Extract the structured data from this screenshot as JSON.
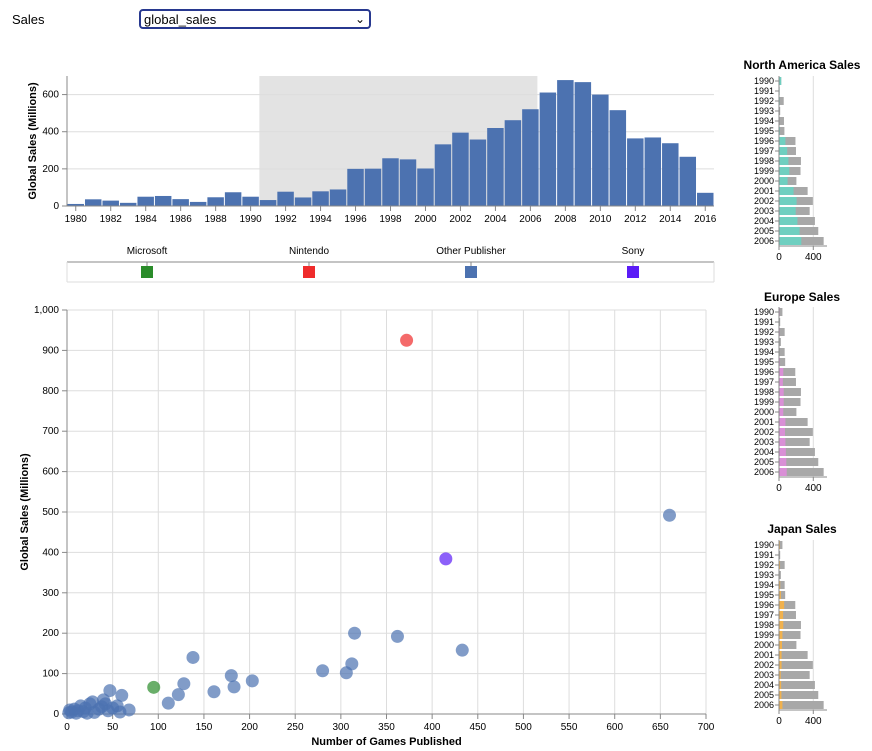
{
  "control": {
    "label": "Sales",
    "selected": "global_sales"
  },
  "chart_data": [
    {
      "type": "bar",
      "ylabel": "Global Sales (Millions)",
      "xlabel": "",
      "ylim": [
        0,
        700
      ],
      "yticks": [
        0,
        200,
        400,
        600
      ],
      "xticks": [
        "1980",
        "1982",
        "1984",
        "1986",
        "1988",
        "1990",
        "1992",
        "1994",
        "1996",
        "1998",
        "2000",
        "2002",
        "2004",
        "2006",
        "2008",
        "2010",
        "2012",
        "2014",
        "2016"
      ],
      "brush": [
        1990.5,
        2006.4
      ],
      "bar_color": "#4c72b0",
      "years": [
        1980,
        1981,
        1982,
        1983,
        1984,
        1985,
        1986,
        1987,
        1988,
        1989,
        1990,
        1991,
        1992,
        1993,
        1994,
        1995,
        1996,
        1997,
        1998,
        1999,
        2000,
        2001,
        2002,
        2003,
        2004,
        2005,
        2006,
        2007,
        2008,
        2009,
        2010,
        2011,
        2012,
        2013,
        2014,
        2015,
        2016
      ],
      "values": [
        11,
        36,
        29,
        17,
        50,
        54,
        37,
        22,
        47,
        74,
        50,
        32,
        77,
        46,
        79,
        89,
        200,
        201,
        257,
        251,
        202,
        332,
        395,
        358,
        420,
        462,
        521,
        611,
        678,
        667,
        600,
        516,
        364,
        369,
        338,
        265,
        71
      ]
    },
    {
      "type": "legend",
      "entries": [
        {
          "name": "Microsoft",
          "color": "#2a8c2a"
        },
        {
          "name": "Nintendo",
          "color": "#ef2b2b"
        },
        {
          "name": "Other Publisher",
          "color": "#4c72b0"
        },
        {
          "name": "Sony",
          "color": "#5b1cf7"
        }
      ]
    },
    {
      "type": "scatter",
      "xlabel": "Number of Games Published",
      "ylabel": "Global Sales (Millions)",
      "xlim": [
        0,
        700
      ],
      "ylim": [
        0,
        1000
      ],
      "xticks": [
        0,
        50,
        100,
        150,
        200,
        250,
        300,
        350,
        400,
        450,
        500,
        550,
        600,
        650,
        700
      ],
      "yticks": [
        0,
        100,
        200,
        300,
        400,
        500,
        600,
        700,
        800,
        900,
        1000
      ],
      "points": [
        {
          "x": 372,
          "y": 925,
          "color": "#ef2b2b"
        },
        {
          "x": 415,
          "y": 384,
          "color": "#5b1cf7"
        },
        {
          "x": 95,
          "y": 66,
          "color": "#2a8c2a"
        },
        {
          "x": 660,
          "y": 492,
          "color": "#4c72b0"
        },
        {
          "x": 433,
          "y": 158,
          "color": "#4c72b0"
        },
        {
          "x": 362,
          "y": 192,
          "color": "#4c72b0"
        },
        {
          "x": 315,
          "y": 200,
          "color": "#4c72b0"
        },
        {
          "x": 312,
          "y": 124,
          "color": "#4c72b0"
        },
        {
          "x": 306,
          "y": 102,
          "color": "#4c72b0"
        },
        {
          "x": 280,
          "y": 107,
          "color": "#4c72b0"
        },
        {
          "x": 203,
          "y": 82,
          "color": "#4c72b0"
        },
        {
          "x": 183,
          "y": 67,
          "color": "#4c72b0"
        },
        {
          "x": 180,
          "y": 95,
          "color": "#4c72b0"
        },
        {
          "x": 161,
          "y": 55,
          "color": "#4c72b0"
        },
        {
          "x": 138,
          "y": 140,
          "color": "#4c72b0"
        },
        {
          "x": 128,
          "y": 75,
          "color": "#4c72b0"
        },
        {
          "x": 122,
          "y": 48,
          "color": "#4c72b0"
        },
        {
          "x": 111,
          "y": 27,
          "color": "#4c72b0"
        },
        {
          "x": 60,
          "y": 46,
          "color": "#4c72b0"
        },
        {
          "x": 47,
          "y": 58,
          "color": "#4c72b0"
        },
        {
          "x": 68,
          "y": 10,
          "color": "#4c72b0"
        },
        {
          "x": 55,
          "y": 20,
          "color": "#4c72b0"
        },
        {
          "x": 40,
          "y": 35,
          "color": "#4c72b0"
        },
        {
          "x": 35,
          "y": 12,
          "color": "#4c72b0"
        },
        {
          "x": 28,
          "y": 30,
          "color": "#4c72b0"
        },
        {
          "x": 25,
          "y": 25,
          "color": "#4c72b0"
        },
        {
          "x": 20,
          "y": 15,
          "color": "#4c72b0"
        },
        {
          "x": 15,
          "y": 20,
          "color": "#4c72b0"
        },
        {
          "x": 12,
          "y": 8,
          "color": "#4c72b0"
        },
        {
          "x": 8,
          "y": 12,
          "color": "#4c72b0"
        },
        {
          "x": 5,
          "y": 5,
          "color": "#4c72b0"
        },
        {
          "x": 3,
          "y": 10,
          "color": "#4c72b0"
        },
        {
          "x": 2,
          "y": 3,
          "color": "#4c72b0"
        },
        {
          "x": 18,
          "y": 6,
          "color": "#4c72b0"
        },
        {
          "x": 30,
          "y": 4,
          "color": "#4c72b0"
        },
        {
          "x": 45,
          "y": 8,
          "color": "#4c72b0"
        },
        {
          "x": 50,
          "y": 15,
          "color": "#4c72b0"
        },
        {
          "x": 38,
          "y": 18,
          "color": "#4c72b0"
        },
        {
          "x": 22,
          "y": 2,
          "color": "#4c72b0"
        },
        {
          "x": 10,
          "y": 2,
          "color": "#4c72b0"
        },
        {
          "x": 58,
          "y": 5,
          "color": "#4c72b0"
        },
        {
          "x": 42,
          "y": 25,
          "color": "#4c72b0"
        }
      ]
    },
    {
      "type": "bar",
      "orientation": "horizontal",
      "title": "North America Sales",
      "highlight_color": "#6fcfc0",
      "years": [
        "1990",
        "1991",
        "1992",
        "1993",
        "1994",
        "1995",
        "1996",
        "1997",
        "1998",
        "1999",
        "2000",
        "2001",
        "2002",
        "2003",
        "2004",
        "2005",
        "2006"
      ],
      "values": [
        26,
        7,
        55,
        14,
        58,
        63,
        192,
        198,
        256,
        251,
        203,
        334,
        395,
        358,
        419,
        458,
        521
      ],
      "highlight": [
        26,
        7,
        8,
        0,
        0,
        10,
        75,
        95,
        110,
        120,
        100,
        170,
        205,
        195,
        215,
        240,
        260
      ],
      "xticks": [
        0,
        400
      ],
      "xlim": [
        0,
        560
      ]
    },
    {
      "type": "bar",
      "orientation": "horizontal",
      "title": "Europe Sales",
      "highlight_color": "#d98fd6",
      "years": [
        "1990",
        "1991",
        "1992",
        "1993",
        "1994",
        "1995",
        "1996",
        "1997",
        "1998",
        "1999",
        "2000",
        "2001",
        "2002",
        "2003",
        "2004",
        "2005",
        "2006"
      ],
      "values": [
        40,
        14,
        66,
        22,
        66,
        72,
        190,
        198,
        256,
        251,
        203,
        334,
        395,
        358,
        419,
        458,
        521
      ],
      "highlight": [
        8,
        2,
        8,
        2,
        4,
        10,
        50,
        45,
        55,
        55,
        50,
        75,
        70,
        75,
        80,
        85,
        90
      ],
      "xticks": [
        0,
        400
      ],
      "xlim": [
        0,
        560
      ]
    },
    {
      "type": "bar",
      "orientation": "horizontal",
      "title": "Japan Sales",
      "highlight_color": "#f0b14e",
      "years": [
        "1990",
        "1991",
        "1992",
        "1993",
        "1994",
        "1995",
        "1996",
        "1997",
        "1998",
        "1999",
        "2000",
        "2001",
        "2002",
        "2003",
        "2004",
        "2005",
        "2006"
      ],
      "values": [
        40,
        14,
        66,
        22,
        66,
        72,
        190,
        198,
        256,
        251,
        203,
        334,
        395,
        358,
        419,
        458,
        521
      ],
      "highlight": [
        10,
        5,
        12,
        6,
        14,
        22,
        60,
        48,
        50,
        40,
        35,
        30,
        30,
        20,
        25,
        28,
        40
      ],
      "xticks": [
        0,
        400
      ],
      "xlim": [
        0,
        560
      ]
    }
  ]
}
